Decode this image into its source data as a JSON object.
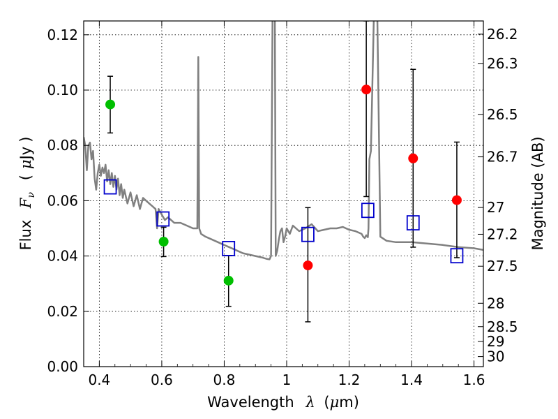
{
  "chart_data": {
    "type": "scatter",
    "title": "",
    "xlabel": {
      "prefix": "Wavelength",
      "symbol": "λ",
      "unit_open": "(",
      "unit_mu": "μ",
      "unit_rest": "m)"
    },
    "ylabel": {
      "prefix": "Flux",
      "symbol_main": "F",
      "symbol_sub": "ν",
      "unit_open": "(",
      "unit_mu": "μ",
      "unit_rest": "Jy",
      "unit_close": ")"
    },
    "y2label": "Magnitude (AB)",
    "xlim": [
      0.35,
      1.63
    ],
    "ylim": [
      0.0,
      0.125
    ],
    "x_ticks": [
      {
        "value": 0.4,
        "label": "0.4"
      },
      {
        "value": 0.6,
        "label": "0.6"
      },
      {
        "value": 0.8,
        "label": "0.8"
      },
      {
        "value": 1.0,
        "label": "1"
      },
      {
        "value": 1.2,
        "label": "1.2"
      },
      {
        "value": 1.4,
        "label": "1.4"
      },
      {
        "value": 1.6,
        "label": "1.6"
      }
    ],
    "y_ticks": [
      {
        "value": 0.0,
        "label": "0.00"
      },
      {
        "value": 0.02,
        "label": "0.02"
      },
      {
        "value": 0.04,
        "label": "0.04"
      },
      {
        "value": 0.06,
        "label": "0.06"
      },
      {
        "value": 0.08,
        "label": "0.08"
      },
      {
        "value": 0.1,
        "label": "0.10"
      },
      {
        "value": 0.12,
        "label": "0.12"
      }
    ],
    "y2_ticks": [
      {
        "value": 26.2,
        "label": "26.2"
      },
      {
        "value": 26.3,
        "label": "26.3"
      },
      {
        "value": 26.5,
        "label": "26.5"
      },
      {
        "value": 26.7,
        "label": "26.7"
      },
      {
        "value": 27.0,
        "label": "27"
      },
      {
        "value": 27.2,
        "label": "27.2"
      },
      {
        "value": 27.5,
        "label": "27.5"
      },
      {
        "value": 28.0,
        "label": "28"
      },
      {
        "value": 28.5,
        "label": "28.5"
      },
      {
        "value": 29.0,
        "label": "29"
      },
      {
        "value": 30.0,
        "label": "30"
      }
    ],
    "grid": true,
    "series": [
      {
        "name": "model_sed",
        "kind": "line",
        "color": "#808080",
        "x": [
          0.35,
          0.355,
          0.36,
          0.365,
          0.37,
          0.375,
          0.38,
          0.385,
          0.39,
          0.395,
          0.4,
          0.405,
          0.41,
          0.415,
          0.42,
          0.425,
          0.43,
          0.435,
          0.44,
          0.445,
          0.45,
          0.455,
          0.46,
          0.465,
          0.47,
          0.475,
          0.48,
          0.49,
          0.5,
          0.51,
          0.52,
          0.53,
          0.54,
          0.55,
          0.56,
          0.57,
          0.58,
          0.585,
          0.59,
          0.6,
          0.61,
          0.62,
          0.64,
          0.66,
          0.68,
          0.7,
          0.714,
          0.717,
          0.72,
          0.723,
          0.726,
          0.74,
          0.76,
          0.78,
          0.8,
          0.82,
          0.84,
          0.86,
          0.88,
          0.9,
          0.92,
          0.935,
          0.945,
          0.95,
          0.955,
          0.958,
          0.962,
          0.965,
          0.97,
          0.975,
          0.98,
          0.985,
          0.99,
          0.995,
          1.0,
          1.01,
          1.02,
          1.03,
          1.04,
          1.06,
          1.08,
          1.1,
          1.12,
          1.14,
          1.16,
          1.18,
          1.2,
          1.22,
          1.24,
          1.245,
          1.25,
          1.255,
          1.26,
          1.262,
          1.265,
          1.27,
          1.28,
          1.285,
          1.29,
          1.3,
          1.32,
          1.35,
          1.4,
          1.45,
          1.5,
          1.55,
          1.6,
          1.63
        ],
        "y": [
          0.083,
          0.08,
          0.071,
          0.08,
          0.081,
          0.075,
          0.078,
          0.068,
          0.064,
          0.07,
          0.073,
          0.069,
          0.072,
          0.07,
          0.073,
          0.067,
          0.071,
          0.066,
          0.07,
          0.065,
          0.069,
          0.064,
          0.068,
          0.062,
          0.066,
          0.061,
          0.064,
          0.059,
          0.063,
          0.058,
          0.062,
          0.057,
          0.061,
          0.06,
          0.059,
          0.058,
          0.057,
          0.05,
          0.057,
          0.055,
          0.053,
          0.054,
          0.052,
          0.052,
          0.051,
          0.05,
          0.05,
          0.112,
          0.05,
          0.049,
          0.048,
          0.047,
          0.046,
          0.045,
          0.044,
          0.043,
          0.042,
          0.041,
          0.0405,
          0.04,
          0.0395,
          0.039,
          0.0388,
          0.04,
          0.13,
          0.13,
          0.13,
          0.04,
          0.042,
          0.046,
          0.049,
          0.05,
          0.045,
          0.047,
          0.05,
          0.048,
          0.051,
          0.05,
          0.049,
          0.05,
          0.0515,
          0.049,
          0.0495,
          0.05,
          0.05,
          0.0505,
          0.0495,
          0.049,
          0.048,
          0.047,
          0.0465,
          0.0475,
          0.0468,
          0.05,
          0.075,
          0.078,
          0.13,
          0.13,
          0.13,
          0.047,
          0.0455,
          0.045,
          0.045,
          0.0445,
          0.044,
          0.0432,
          0.0428,
          0.0422
        ]
      },
      {
        "name": "optical_photometry",
        "kind": "scatter",
        "marker": "circle",
        "color": "#00bf00",
        "points": [
          {
            "x": 0.435,
            "y": 0.0948,
            "err_lo": 0.0845,
            "err_hi": 0.105
          },
          {
            "x": 0.606,
            "y": 0.0452,
            "err_lo": 0.0398,
            "err_hi": 0.0504
          },
          {
            "x": 0.814,
            "y": 0.0311,
            "err_lo": 0.0218,
            "err_hi": 0.0401
          }
        ]
      },
      {
        "name": "nir_photometry",
        "kind": "scatter",
        "marker": "circle",
        "color": "#ff0000",
        "points": [
          {
            "x": 1.068,
            "y": 0.0366,
            "err_lo": 0.0162,
            "err_hi": 0.0575
          },
          {
            "x": 1.255,
            "y": 0.1002,
            "err_lo": 0.0615,
            "err_hi": 0.125
          },
          {
            "x": 1.405,
            "y": 0.0753,
            "err_lo": 0.0432,
            "err_hi": 0.1075
          },
          {
            "x": 1.545,
            "y": 0.0602,
            "err_lo": 0.0394,
            "err_hi": 0.0812
          }
        ]
      },
      {
        "name": "model_synthetic_fluxes",
        "kind": "scatter",
        "marker": "open-square",
        "color": "#0000cc",
        "points": [
          {
            "x": 0.435,
            "y": 0.065
          },
          {
            "x": 0.604,
            "y": 0.0534
          },
          {
            "x": 0.814,
            "y": 0.0427
          },
          {
            "x": 1.068,
            "y": 0.0478
          },
          {
            "x": 1.26,
            "y": 0.0565
          },
          {
            "x": 1.405,
            "y": 0.052
          },
          {
            "x": 1.545,
            "y": 0.0401
          }
        ]
      }
    ]
  }
}
